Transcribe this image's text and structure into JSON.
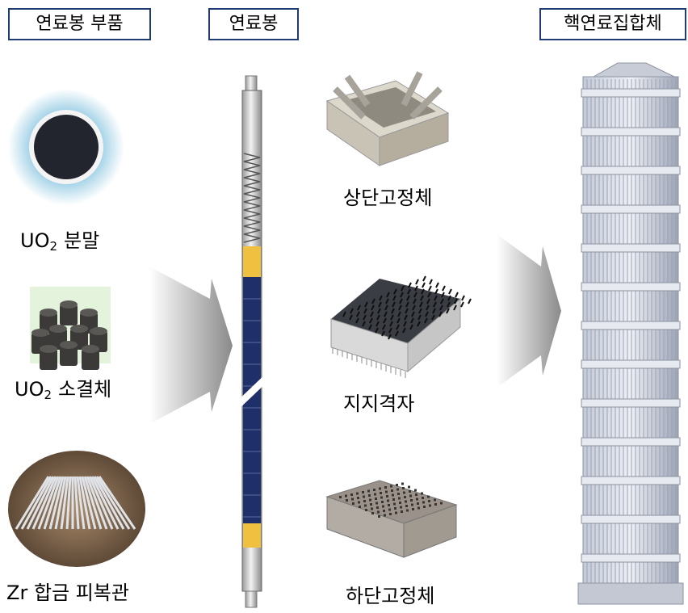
{
  "headers": {
    "parts": "연료봉 부품",
    "rod": "연료봉",
    "assembly": "핵연료집합체"
  },
  "parts": [
    {
      "base": "UO",
      "sub": "2",
      "rest": "분말"
    },
    {
      "base": "UO",
      "sub": "2",
      "rest": "소결체"
    },
    {
      "label": "Zr 합금 피복관"
    }
  ],
  "components": [
    "상단고정체",
    "지지격자",
    "하단고정체"
  ]
}
